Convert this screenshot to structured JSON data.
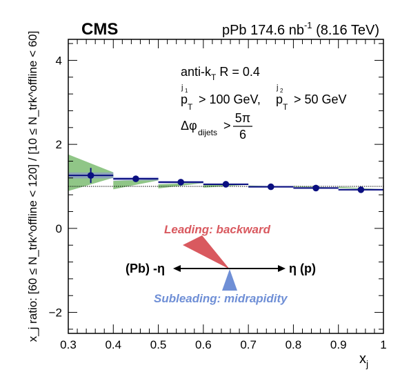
{
  "header": {
    "experiment": "CMS",
    "dataset_prefix": "pPb 174.6 nb",
    "dataset_sup": "-1",
    "dataset_suffix": " (8.16 TeV)"
  },
  "annotations": {
    "algo_prefix": "anti-k",
    "algo_sub": "T",
    "algo_suffix": " R = 0.4",
    "pt_cut_1": "> 100 GeV,",
    "pt_cut_2": "> 50 GeV",
    "pt_symbol": "p",
    "pt_sub": "T",
    "pt_sup_1": "j",
    "pt_sup_1_sub": "1",
    "pt_sup_2": "j",
    "pt_sup_2_sub": "2",
    "dphi_prefix": "Δφ",
    "dphi_sub": "dijets",
    "dphi_gt": ">",
    "dphi_num": "5π",
    "dphi_den": "6"
  },
  "diagram": {
    "leading_label": "Leading: backward",
    "subleading_label": "Subleading: midrapidity",
    "left_label": "(Pb) -η",
    "right_label": "η (p)",
    "leading_color": "#d9595f",
    "subleading_color": "#6f8fd6"
  },
  "colors": {
    "data": "#0a0f80",
    "stat_band": "#8a8ed8",
    "syst_band": "#6bb35f",
    "reference_line": "#000000"
  },
  "axes": {
    "xlabel_main": "x",
    "xlabel_sub": "j",
    "ylabel": "x_j ratio: [60 ≤ N_trk^offline < 120] / [10 ≤ N_trk^offline < 60]"
  },
  "chart_data": {
    "type": "scatter",
    "xlim": [
      0.3,
      1.0
    ],
    "ylim": [
      -2.5,
      4.5
    ],
    "x_ticks": [
      "0.3",
      "0.4",
      "0.5",
      "0.6",
      "0.7",
      "0.8",
      "0.9",
      "1"
    ],
    "y_ticks": [
      "−2",
      "0",
      "2",
      "4"
    ],
    "reference_line_y": 1.0,
    "series": [
      {
        "x": [
          0.35,
          0.45,
          0.55,
          0.65,
          0.75,
          0.85,
          0.95
        ],
        "x_bin_edges": [
          [
            0.3,
            0.4
          ],
          [
            0.4,
            0.5
          ],
          [
            0.5,
            0.6
          ],
          [
            0.6,
            0.7
          ],
          [
            0.7,
            0.8
          ],
          [
            0.8,
            0.9
          ],
          [
            0.9,
            1.0
          ]
        ],
        "y": [
          1.26,
          1.18,
          1.1,
          1.05,
          0.99,
          0.96,
          0.92
        ],
        "stat_err": [
          0.18,
          0.03,
          0.02,
          0.02,
          0.01,
          0.01,
          0.01
        ],
        "stat_band": [
          0.07,
          0.04,
          0.03,
          0.02,
          0.02,
          0.02,
          0.02
        ],
        "syst_band_y": [
          [
            1.76,
            0.89
          ],
          [
            1.13,
            0.93
          ],
          [
            1.05,
            0.95
          ],
          [
            1.03,
            0.97
          ],
          [
            1.02,
            0.98
          ],
          [
            1.01,
            0.99
          ],
          [
            0.99,
            0.96
          ]
        ]
      }
    ]
  }
}
